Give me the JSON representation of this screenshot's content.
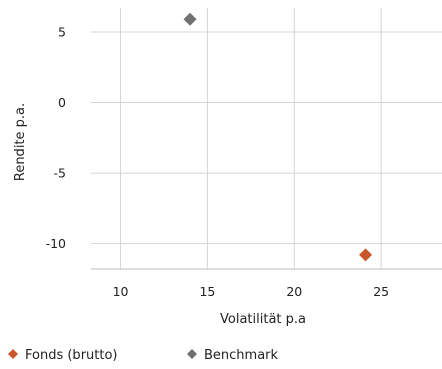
{
  "chart_data": {
    "type": "scatter",
    "title": "",
    "xlabel": "Volatilität p.a",
    "ylabel": "Rendite p.a.",
    "xlim": [
      8.3,
      28.5
    ],
    "ylim": [
      -11.8,
      6.7
    ],
    "xticks": [
      10,
      15,
      20,
      25
    ],
    "yticks": [
      5,
      0,
      -5,
      -10
    ],
    "grid": true,
    "legend_position": "bottom-left",
    "series": [
      {
        "name": "Fonds (brutto)",
        "color": "#c9572a",
        "marker": "diamond",
        "points": [
          {
            "x": 24.1,
            "y": -10.8
          }
        ]
      },
      {
        "name": "Benchmark",
        "color": "#707070",
        "marker": "diamond",
        "points": [
          {
            "x": 14.0,
            "y": 5.9
          }
        ]
      }
    ]
  }
}
